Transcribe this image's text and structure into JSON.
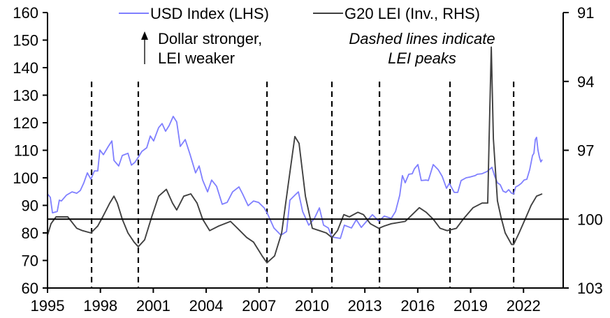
{
  "chart_data": {
    "type": "line",
    "title": "",
    "xlabel": "",
    "ylabel_left": "",
    "ylabel_right": "",
    "xlim": [
      1995,
      2024.25
    ],
    "ylim_left": [
      60,
      160
    ],
    "ylim_right": [
      91,
      103
    ],
    "right_axis_inverted": true,
    "grid": false,
    "legend_position": "top",
    "x_ticks": [
      1995,
      1998,
      2001,
      2004,
      2007,
      2010,
      2013,
      2016,
      2019,
      2022
    ],
    "x_tick_labels": [
      "1995",
      "1998",
      "2001",
      "2004",
      "2007",
      "2010",
      "2013",
      "2016",
      "2019",
      "2022"
    ],
    "y_left_ticks": [
      60,
      70,
      80,
      90,
      100,
      110,
      120,
      130,
      140,
      150,
      160
    ],
    "y_left_tick_labels": [
      "60",
      "70",
      "80",
      "90",
      "100",
      "110",
      "120",
      "130",
      "140",
      "150",
      "160"
    ],
    "y_right_ticks": [
      91,
      94,
      97,
      100,
      103
    ],
    "y_right_tick_labels": [
      "91",
      "94",
      "97",
      "100",
      "103"
    ],
    "reference_line": {
      "axis": "right",
      "value": 100
    },
    "dashed_lines_x": [
      1997.5,
      2000.15,
      2007.45,
      2011.13,
      2013.83,
      2017.83,
      2021.44
    ],
    "annotations": {
      "arrow_text_line1": "Dollar stronger,",
      "arrow_text_line2": "LEI weaker",
      "dashed_note_line1": "Dashed lines indicate",
      "dashed_note_line2": "LEI peaks"
    },
    "series": [
      {
        "name": "USD Index (LHS)",
        "axis": "left",
        "color": "#7f7fff",
        "x": [
          1995.0,
          1995.16,
          1995.28,
          1995.55,
          1995.67,
          1995.79,
          1996.07,
          1996.39,
          1996.66,
          1996.86,
          1997.06,
          1997.26,
          1997.46,
          1997.66,
          1997.85,
          1997.97,
          1998.17,
          1998.45,
          1998.65,
          1998.77,
          1999.04,
          1999.24,
          1999.56,
          1999.76,
          1999.95,
          2000.11,
          2000.35,
          2000.63,
          2000.83,
          2001.02,
          2001.3,
          2001.5,
          2001.7,
          2001.9,
          2002.13,
          2002.33,
          2002.53,
          2002.81,
          2003.09,
          2003.4,
          2003.6,
          2003.8,
          2004.08,
          2004.31,
          2004.59,
          2004.91,
          2005.19,
          2005.5,
          2005.86,
          2006.06,
          2006.38,
          2006.69,
          2006.97,
          2007.29,
          2007.49,
          2007.84,
          2008.24,
          2008.56,
          2008.75,
          2009.03,
          2009.23,
          2009.47,
          2009.82,
          2010.14,
          2010.42,
          2010.66,
          2010.93,
          2011.13,
          2011.61,
          2011.84,
          2012.24,
          2012.52,
          2012.8,
          2013.11,
          2013.43,
          2013.79,
          2014.1,
          2014.5,
          2014.74,
          2014.98,
          2015.13,
          2015.29,
          2015.49,
          2015.69,
          2015.81,
          2016.01,
          2016.2,
          2016.48,
          2016.6,
          2016.88,
          2017.16,
          2017.39,
          2017.63,
          2017.79,
          2018.07,
          2018.27,
          2018.46,
          2018.74,
          2018.98,
          2019.26,
          2019.38,
          2019.65,
          2019.93,
          2020.21,
          2020.37,
          2020.52,
          2020.68,
          2020.84,
          2021.0,
          2021.16,
          2021.32,
          2021.44,
          2021.56,
          2021.71,
          2021.87,
          2022.03,
          2022.19,
          2022.35,
          2022.51,
          2022.59,
          2022.67,
          2022.74,
          2022.82,
          2022.9,
          2022.98,
          2023.06
        ],
        "values": [
          94.2,
          92.9,
          87.3,
          87.8,
          91.9,
          91.6,
          93.7,
          94.9,
          94.4,
          95.4,
          98.2,
          101.8,
          99.5,
          102.5,
          102.5,
          110.1,
          108.4,
          111.4,
          113.4,
          106.3,
          104.3,
          108.1,
          108.9,
          104.6,
          105.6,
          107.1,
          109.6,
          110.9,
          115.2,
          113.4,
          118.2,
          119.7,
          116.9,
          119.0,
          122.3,
          120.3,
          111.4,
          113.9,
          108.4,
          101.8,
          104.3,
          99.2,
          94.9,
          99.2,
          96.9,
          90.4,
          91.1,
          94.9,
          96.7,
          94.2,
          89.9,
          91.6,
          91.1,
          89.1,
          86.8,
          81.8,
          79.2,
          80.5,
          91.9,
          93.7,
          94.9,
          87.8,
          82.8,
          85.3,
          89.1,
          82.8,
          81.8,
          78.5,
          78.0,
          82.8,
          81.8,
          84.8,
          82.0,
          84.3,
          86.6,
          84.3,
          86.1,
          85.3,
          87.8,
          93.7,
          100.8,
          98.2,
          101.3,
          101.5,
          103.3,
          104.8,
          99.0,
          99.2,
          99.0,
          104.8,
          103.0,
          100.5,
          96.2,
          98.0,
          94.7,
          94.7,
          99.0,
          100.0,
          100.3,
          100.8,
          101.3,
          101.5,
          102.3,
          103.8,
          100.5,
          98.2,
          97.5,
          95.2,
          94.7,
          95.7,
          94.4,
          94.2,
          96.7,
          97.2,
          98.0,
          99.2,
          99.5,
          103.0,
          108.1,
          108.9,
          113.9,
          114.7,
          110.1,
          107.6,
          105.8,
          106.6
        ]
      },
      {
        "name": "G20 LEI (Inv., RHS)",
        "axis": "right",
        "color": "#404040",
        "x": [
          1995.0,
          1995.2,
          1995.48,
          1995.87,
          1996.15,
          1996.66,
          1996.98,
          1997.46,
          1997.85,
          1998.13,
          1998.53,
          1998.77,
          1998.96,
          1999.24,
          1999.56,
          1999.91,
          2000.15,
          2000.51,
          2000.91,
          2001.3,
          2001.74,
          2002.09,
          2002.33,
          2002.73,
          2003.13,
          2003.48,
          2003.8,
          2004.2,
          2004.71,
          2005.38,
          2005.78,
          2006.3,
          2006.69,
          2007.17,
          2007.45,
          2007.88,
          2008.28,
          2008.67,
          2009.03,
          2009.27,
          2009.63,
          2010.02,
          2010.42,
          2010.81,
          2011.13,
          2011.45,
          2011.81,
          2012.12,
          2012.6,
          2012.92,
          2013.31,
          2013.79,
          2014.1,
          2014.5,
          2015.29,
          2015.69,
          2016.09,
          2016.48,
          2016.88,
          2017.27,
          2017.67,
          2018.19,
          2018.58,
          2019.14,
          2019.65,
          2019.97,
          2020.05,
          2020.17,
          2020.29,
          2020.52,
          2020.72,
          2020.96,
          2021.32,
          2021.44,
          2021.75,
          2022.15,
          2022.43,
          2022.74,
          2023.06
        ],
        "values": [
          100.7,
          100.2,
          99.9,
          99.9,
          99.9,
          100.4,
          100.5,
          100.6,
          100.3,
          99.9,
          99.3,
          99.0,
          99.3,
          100.0,
          100.6,
          101.0,
          101.2,
          100.9,
          99.9,
          99.0,
          98.7,
          99.3,
          99.6,
          99.0,
          98.9,
          99.3,
          100.0,
          100.5,
          100.3,
          100.1,
          100.4,
          100.8,
          101.0,
          101.6,
          101.9,
          101.6,
          100.6,
          98.4,
          96.4,
          96.7,
          99.0,
          100.4,
          100.5,
          100.6,
          100.8,
          100.5,
          99.8,
          99.9,
          99.7,
          99.8,
          100.2,
          100.4,
          100.3,
          100.2,
          100.1,
          99.8,
          99.5,
          99.7,
          100.0,
          100.4,
          100.5,
          100.4,
          100.0,
          99.5,
          99.3,
          99.3,
          96.5,
          92.5,
          96.5,
          99.2,
          99.9,
          100.6,
          101.1,
          101.1,
          100.6,
          99.9,
          99.4,
          99.0,
          98.9
        ]
      }
    ]
  }
}
